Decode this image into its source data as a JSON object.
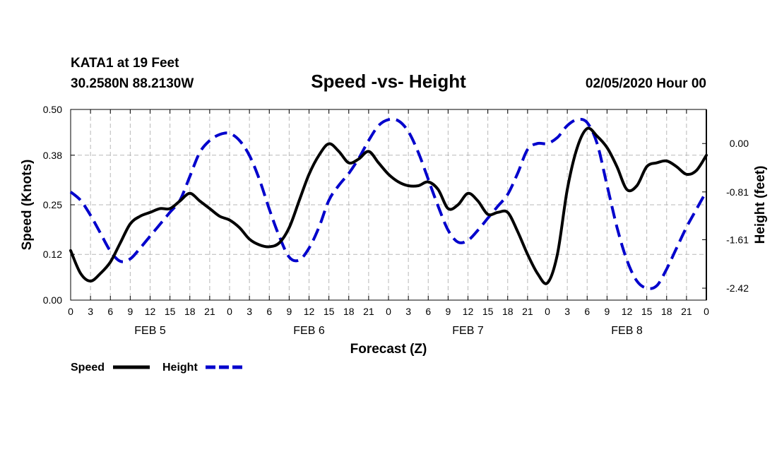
{
  "header": {
    "station": "KATA1 at 19 Feet",
    "coords": "30.2580N 88.2130W",
    "datetime": "02/05/2020 Hour 00"
  },
  "chart_data": {
    "type": "line",
    "title": "Speed -vs- Height",
    "xlabel": "Forecast (Z)",
    "ylabel_left": "Speed (Knots)",
    "ylabel_right": "Height (feet)",
    "x_unit": "hours from 02/05/2020 00Z",
    "xlim": [
      0,
      96
    ],
    "ylim_left": [
      0,
      0.5
    ],
    "ylim_right": [
      -2.62,
      0.57
    ],
    "left_ticks": [
      0.0,
      0.12,
      0.25,
      0.38,
      0.5
    ],
    "left_tick_labels": [
      "0.00",
      "0.12",
      "0.25",
      "0.38",
      "0.50"
    ],
    "right_ticks": [
      -2.42,
      -1.61,
      -0.81,
      0.0
    ],
    "right_tick_labels": [
      "-2.42",
      "-1.61",
      "-0.81",
      "0.00"
    ],
    "x_tick_hours": [
      0,
      3,
      6,
      9,
      12,
      15,
      18,
      21,
      24,
      27,
      30,
      33,
      36,
      39,
      42,
      45,
      48,
      51,
      54,
      57,
      60,
      63,
      66,
      69,
      72,
      75,
      78,
      81,
      84,
      87,
      90,
      93,
      96
    ],
    "x_tick_labels": [
      "0",
      "3",
      "6",
      "9",
      "12",
      "15",
      "18",
      "21",
      "0",
      "3",
      "6",
      "9",
      "12",
      "15",
      "18",
      "21",
      "0",
      "3",
      "6",
      "9",
      "12",
      "15",
      "18",
      "21",
      "0",
      "3",
      "6",
      "9",
      "12",
      "15",
      "18",
      "21",
      "0"
    ],
    "day_labels": [
      "FEB 5",
      "FEB 6",
      "FEB 7",
      "FEB 8"
    ],
    "day_label_hours": [
      12,
      36,
      60,
      84
    ],
    "grid": true,
    "legend": [
      "Speed",
      "Height"
    ],
    "legend_position": "bottom-left",
    "series": [
      {
        "name": "Speed",
        "axis": "left",
        "color": "#000000",
        "style": "solid",
        "x": [
          0,
          1.5,
          3,
          4.5,
          6,
          7.5,
          9,
          10.5,
          12,
          13.5,
          15,
          16.5,
          18,
          19.5,
          21,
          22.5,
          24,
          25.5,
          27,
          28.5,
          30,
          31.5,
          33,
          34.5,
          36,
          37.5,
          39,
          40.5,
          42,
          43.5,
          45,
          46.5,
          48,
          49.5,
          51,
          52.5,
          54,
          55.5,
          57,
          58.5,
          60,
          61.5,
          63,
          64.5,
          66,
          67.5,
          69,
          70.5,
          72,
          73.5,
          75,
          76.5,
          78,
          79.5,
          81,
          82.5,
          84,
          85.5,
          87,
          88.5,
          90,
          91.5,
          93,
          94.5,
          96
        ],
        "y": [
          0.13,
          0.07,
          0.05,
          0.07,
          0.1,
          0.15,
          0.2,
          0.22,
          0.23,
          0.24,
          0.24,
          0.26,
          0.28,
          0.26,
          0.24,
          0.22,
          0.21,
          0.19,
          0.16,
          0.145,
          0.14,
          0.15,
          0.19,
          0.26,
          0.33,
          0.38,
          0.41,
          0.39,
          0.36,
          0.37,
          0.39,
          0.36,
          0.33,
          0.31,
          0.3,
          0.3,
          0.31,
          0.29,
          0.24,
          0.25,
          0.28,
          0.26,
          0.225,
          0.23,
          0.23,
          0.18,
          0.12,
          0.07,
          0.045,
          0.12,
          0.29,
          0.4,
          0.45,
          0.43,
          0.4,
          0.35,
          0.29,
          0.3,
          0.35,
          0.36,
          0.365,
          0.35,
          0.33,
          0.34,
          0.38
        ]
      },
      {
        "name": "Height",
        "axis": "right",
        "color": "#0000cc",
        "style": "dashed",
        "x": [
          0,
          1.5,
          3,
          4.5,
          6,
          7.5,
          9,
          10.5,
          12,
          13.5,
          15,
          16.5,
          18,
          19.5,
          21,
          22.5,
          24,
          25.5,
          27,
          28.5,
          30,
          31.5,
          33,
          34.5,
          36,
          37.5,
          39,
          40.5,
          42,
          43.5,
          45,
          46.5,
          48,
          49.5,
          51,
          52.5,
          54,
          55.5,
          57,
          58.5,
          60,
          61.5,
          63,
          64.5,
          66,
          67.5,
          69,
          70.5,
          72,
          73.5,
          75,
          76.5,
          78,
          79.5,
          81,
          82.5,
          84,
          85.5,
          87,
          88.5,
          90,
          91.5,
          93,
          94.5,
          96
        ],
        "y": [
          -0.81,
          -0.95,
          -1.2,
          -1.5,
          -1.8,
          -1.97,
          -1.93,
          -1.75,
          -1.55,
          -1.35,
          -1.15,
          -0.95,
          -0.55,
          -0.15,
          0.05,
          0.15,
          0.17,
          0.05,
          -0.2,
          -0.6,
          -1.1,
          -1.55,
          -1.9,
          -1.95,
          -1.75,
          -1.4,
          -0.95,
          -0.7,
          -0.5,
          -0.25,
          0.05,
          0.3,
          0.4,
          0.38,
          0.2,
          -0.15,
          -0.6,
          -1.05,
          -1.45,
          -1.65,
          -1.62,
          -1.45,
          -1.25,
          -1.05,
          -0.85,
          -0.5,
          -0.1,
          0.0,
          0.0,
          0.1,
          0.3,
          0.4,
          0.35,
          0.0,
          -0.7,
          -1.4,
          -1.95,
          -2.3,
          -2.42,
          -2.38,
          -2.1,
          -1.75,
          -1.4,
          -1.1,
          -0.8
        ]
      }
    ]
  }
}
